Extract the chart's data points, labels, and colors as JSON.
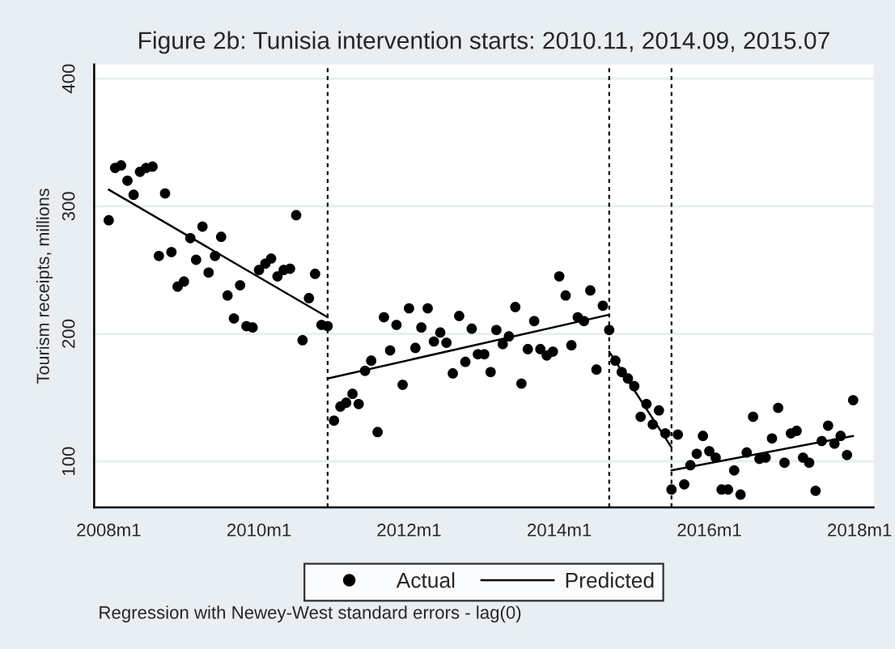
{
  "chart_data": {
    "type": "scatter",
    "title": "Figure 2b: Tunisia intervention starts: 2010.11, 2014.09, 2015.07",
    "ylabel": "Tourism receipts, millions",
    "x": [
      "2008-01",
      "2008-02",
      "2008-03",
      "2008-04",
      "2008-05",
      "2008-06",
      "2008-07",
      "2008-08",
      "2008-09",
      "2008-10",
      "2008-11",
      "2008-12",
      "2009-01",
      "2009-02",
      "2009-03",
      "2009-04",
      "2009-05",
      "2009-06",
      "2009-07",
      "2009-08",
      "2009-09",
      "2009-10",
      "2009-11",
      "2009-12",
      "2010-01",
      "2010-02",
      "2010-03",
      "2010-04",
      "2010-05",
      "2010-06",
      "2010-07",
      "2010-08",
      "2010-09",
      "2010-10",
      "2010-11",
      "2010-12",
      "2011-01",
      "2011-02",
      "2011-03",
      "2011-04",
      "2011-05",
      "2011-06",
      "2011-07",
      "2011-08",
      "2011-09",
      "2011-10",
      "2011-11",
      "2011-12",
      "2012-01",
      "2012-02",
      "2012-03",
      "2012-04",
      "2012-05",
      "2012-06",
      "2012-07",
      "2012-08",
      "2012-09",
      "2012-10",
      "2012-11",
      "2012-12",
      "2013-01",
      "2013-02",
      "2013-03",
      "2013-04",
      "2013-05",
      "2013-06",
      "2013-07",
      "2013-08",
      "2013-09",
      "2013-10",
      "2013-11",
      "2013-12",
      "2014-01",
      "2014-02",
      "2014-03",
      "2014-04",
      "2014-05",
      "2014-06",
      "2014-07",
      "2014-08",
      "2014-09",
      "2014-10",
      "2014-11",
      "2014-12",
      "2015-01",
      "2015-02",
      "2015-03",
      "2015-04",
      "2015-05",
      "2015-06",
      "2015-07",
      "2015-08",
      "2015-09",
      "2015-10",
      "2015-11",
      "2015-12",
      "2016-01",
      "2016-02",
      "2016-03",
      "2016-04",
      "2016-05",
      "2016-06",
      "2016-07",
      "2016-08",
      "2016-09",
      "2016-10",
      "2016-11",
      "2016-12",
      "2017-01",
      "2017-02",
      "2017-03",
      "2017-04",
      "2017-05",
      "2017-06",
      "2017-07",
      "2017-08",
      "2017-09",
      "2017-10",
      "2017-11",
      "2017-12"
    ],
    "series": [
      {
        "name": "Actual",
        "color": "#000000",
        "values": [
          289,
          330,
          332,
          320,
          309,
          327,
          330,
          331,
          261,
          310,
          264,
          237,
          241,
          275,
          258,
          284,
          248,
          261,
          276,
          230,
          212,
          238,
          206,
          205,
          250,
          255,
          259,
          245,
          250,
          251,
          293,
          195,
          228,
          247,
          207,
          206,
          132,
          143,
          146,
          153,
          145,
          171,
          179,
          123,
          213,
          187,
          207,
          160,
          220,
          189,
          205,
          220,
          194,
          201,
          193,
          169,
          214,
          178,
          204,
          184,
          184,
          170,
          203,
          192,
          198,
          221,
          161,
          188,
          210,
          188,
          183,
          186,
          245,
          230,
          191,
          213,
          210,
          234,
          172,
          222,
          203,
          179,
          170,
          165,
          159,
          135,
          145,
          129,
          140,
          122,
          78,
          121,
          82,
          97,
          106,
          120,
          108,
          103,
          78,
          78,
          93,
          74,
          107,
          135,
          102,
          103,
          118,
          142,
          99,
          122,
          124,
          103,
          99,
          77,
          116,
          128,
          114,
          120,
          105,
          148
        ]
      },
      {
        "name": "Predicted",
        "type": "line",
        "color": "#000000",
        "marker": "none",
        "x": [
          "2008-01",
          "2010-12"
        ],
        "values": [
          313,
          213
        ]
      },
      {
        "type": "line",
        "color": "#000000",
        "marker": "none",
        "x": [
          "2010-12",
          "2014-09"
        ],
        "values": [
          165,
          215
        ]
      },
      {
        "type": "line",
        "color": "#000000",
        "marker": "none",
        "x": [
          "2014-09",
          "2015-07"
        ],
        "values": [
          186,
          111
        ]
      },
      {
        "type": "line",
        "color": "#000000",
        "marker": "none",
        "x": [
          "2015-07",
          "2017-12"
        ],
        "values": [
          93,
          120
        ]
      }
    ],
    "xlim": [
      "2007-10-22",
      "2018-03-10"
    ],
    "xticks": [
      {
        "value": "2008-01",
        "label": "2008m1"
      },
      {
        "value": "2010-01",
        "label": "2010m1"
      },
      {
        "value": "2012-01",
        "label": "2012m1"
      },
      {
        "value": "2014-01",
        "label": "2014m1"
      },
      {
        "value": "2016-01",
        "label": "2016m1"
      },
      {
        "value": "2018-01",
        "label": "2018m1"
      }
    ],
    "ylim": [
      64,
      411
    ],
    "yticks": [
      100,
      200,
      300,
      400
    ],
    "ref_lines": [
      {
        "axis": "x",
        "value": "2010-12",
        "color": "#000000",
        "line_style": "dashed"
      },
      {
        "axis": "x",
        "value": "2014-09",
        "color": "#000000",
        "line_style": "dashed"
      },
      {
        "axis": "x",
        "value": "2015-07",
        "color": "#000000",
        "line_style": "dashed"
      }
    ],
    "annotations": [
      "Regression with Newey-West standard errors - lag(0)"
    ],
    "grid": "y",
    "legend": "bottom",
    "marker": "circle"
  }
}
